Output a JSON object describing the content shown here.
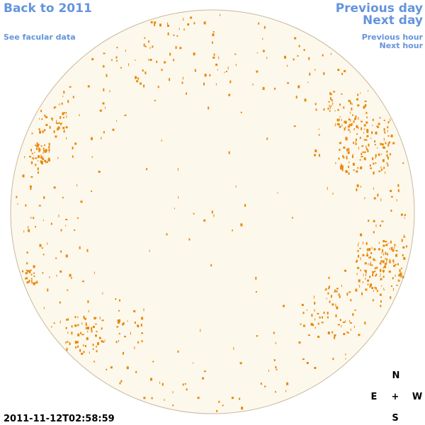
{
  "links": {
    "back": "Back to 2011",
    "facular": "See facular data",
    "previous_day": "Previous day",
    "next_day": "Next day",
    "previous_hour": "Previous hour",
    "next_hour": "Next hour"
  },
  "timestamp": "2011-11-12T02:58:59",
  "compass": {
    "north": "N",
    "east": "E",
    "center": "+",
    "west": "W",
    "south": "S"
  }
}
